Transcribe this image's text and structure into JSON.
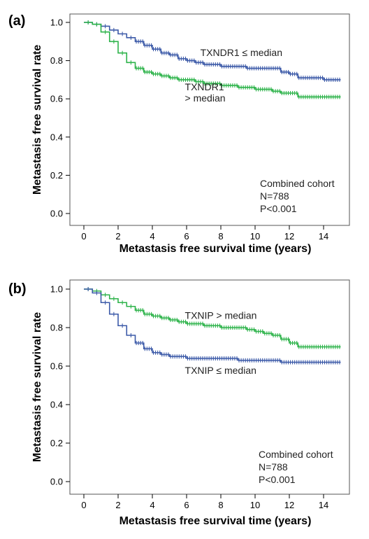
{
  "chart_data": [
    {
      "type": "line",
      "panel_label": "(a)",
      "xlabel": "Metastasis free survival time (years)",
      "ylabel": "Metastasis free survival rate",
      "xlim": [
        0,
        15
      ],
      "ylim": [
        0,
        1.0
      ],
      "xticks": [
        "0",
        "2",
        "4",
        "6",
        "8",
        "10",
        "12",
        "14"
      ],
      "yticks": [
        "0.0",
        "0.2",
        "0.4",
        "0.6",
        "0.8",
        "1.0"
      ],
      "annotation": [
        "Combined cohort",
        "N=788",
        "P<0.001"
      ],
      "series": [
        {
          "name": "TXNDR1 ≤ median",
          "color": "#3c5aa8",
          "x": [
            0,
            0.5,
            1,
            1.5,
            2,
            2.5,
            3,
            3.5,
            4,
            4.5,
            5,
            5.5,
            6,
            6.5,
            7,
            7.5,
            8,
            8.5,
            9,
            9.5,
            10,
            10.5,
            11,
            11.5,
            12,
            12.5,
            13,
            13.5,
            14,
            14.5,
            15
          ],
          "y": [
            1.0,
            0.99,
            0.98,
            0.96,
            0.94,
            0.92,
            0.9,
            0.88,
            0.86,
            0.84,
            0.83,
            0.81,
            0.8,
            0.79,
            0.78,
            0.78,
            0.77,
            0.77,
            0.77,
            0.76,
            0.76,
            0.76,
            0.76,
            0.74,
            0.73,
            0.71,
            0.71,
            0.71,
            0.7,
            0.7,
            0.7
          ]
        },
        {
          "name": "TXNDR1 > median",
          "color": "#2db34a",
          "x": [
            0,
            0.5,
            1,
            1.5,
            2,
            2.5,
            3,
            3.5,
            4,
            4.5,
            5,
            5.5,
            6,
            6.5,
            7,
            7.5,
            8,
            8.5,
            9,
            9.5,
            10,
            10.5,
            11,
            11.5,
            12,
            12.5,
            13,
            13.5,
            14,
            14.5,
            15
          ],
          "y": [
            1.0,
            0.99,
            0.95,
            0.9,
            0.84,
            0.79,
            0.76,
            0.74,
            0.73,
            0.72,
            0.71,
            0.7,
            0.7,
            0.69,
            0.68,
            0.68,
            0.67,
            0.67,
            0.66,
            0.66,
            0.65,
            0.65,
            0.64,
            0.63,
            0.63,
            0.61,
            0.61,
            0.61,
            0.61,
            0.61,
            0.61
          ]
        }
      ],
      "labels": [
        {
          "lines": [
            "TXNDR1 ≤ median"
          ],
          "x": 6.8,
          "y": 0.825
        },
        {
          "lines": [
            "TXNDR1",
            "> median"
          ],
          "x": 5.9,
          "y": 0.645
        }
      ]
    },
    {
      "type": "line",
      "panel_label": "(b)",
      "xlabel": "Metastasis free survival time (years)",
      "ylabel": "Metastasis free survival rate",
      "xlim": [
        0,
        15
      ],
      "ylim": [
        0,
        1.0
      ],
      "xticks": [
        "0",
        "2",
        "4",
        "6",
        "8",
        "10",
        "12",
        "14"
      ],
      "yticks": [
        "0.0",
        "0.2",
        "0.4",
        "0.6",
        "0.8",
        "1.0"
      ],
      "annotation": [
        "Combined cohort",
        "N=788",
        "P<0.001"
      ],
      "series": [
        {
          "name": "TXNIP > median",
          "color": "#2db34a",
          "x": [
            0,
            0.5,
            1,
            1.5,
            2,
            2.5,
            3,
            3.5,
            4,
            4.5,
            5,
            5.5,
            6,
            6.5,
            7,
            7.5,
            8,
            8.5,
            9,
            9.5,
            10,
            10.5,
            11,
            11.5,
            12,
            12.5,
            13,
            13.5,
            14,
            14.5,
            15
          ],
          "y": [
            1.0,
            0.99,
            0.97,
            0.95,
            0.93,
            0.91,
            0.89,
            0.87,
            0.86,
            0.85,
            0.84,
            0.83,
            0.82,
            0.82,
            0.81,
            0.81,
            0.8,
            0.8,
            0.8,
            0.79,
            0.78,
            0.77,
            0.76,
            0.74,
            0.72,
            0.7,
            0.7,
            0.7,
            0.7,
            0.7,
            0.7
          ]
        },
        {
          "name": "TXNIP ≤ median",
          "color": "#3c5aa8",
          "x": [
            0,
            0.5,
            1,
            1.5,
            2,
            2.5,
            3,
            3.5,
            4,
            4.5,
            5,
            5.5,
            6,
            6.5,
            7,
            7.5,
            8,
            8.5,
            9,
            9.5,
            10,
            10.5,
            11,
            11.5,
            12,
            12.5,
            13,
            13.5,
            14,
            14.5,
            15
          ],
          "y": [
            1.0,
            0.98,
            0.93,
            0.87,
            0.81,
            0.76,
            0.72,
            0.69,
            0.67,
            0.66,
            0.65,
            0.65,
            0.64,
            0.64,
            0.64,
            0.64,
            0.64,
            0.64,
            0.63,
            0.63,
            0.63,
            0.63,
            0.63,
            0.62,
            0.62,
            0.62,
            0.62,
            0.62,
            0.62,
            0.62,
            0.62
          ]
        }
      ],
      "labels": [
        {
          "lines": [
            "TXNIP > median"
          ],
          "x": 5.9,
          "y": 0.845
        },
        {
          "lines": [
            "TXNIP ≤ median"
          ],
          "x": 5.9,
          "y": 0.56
        }
      ]
    }
  ]
}
